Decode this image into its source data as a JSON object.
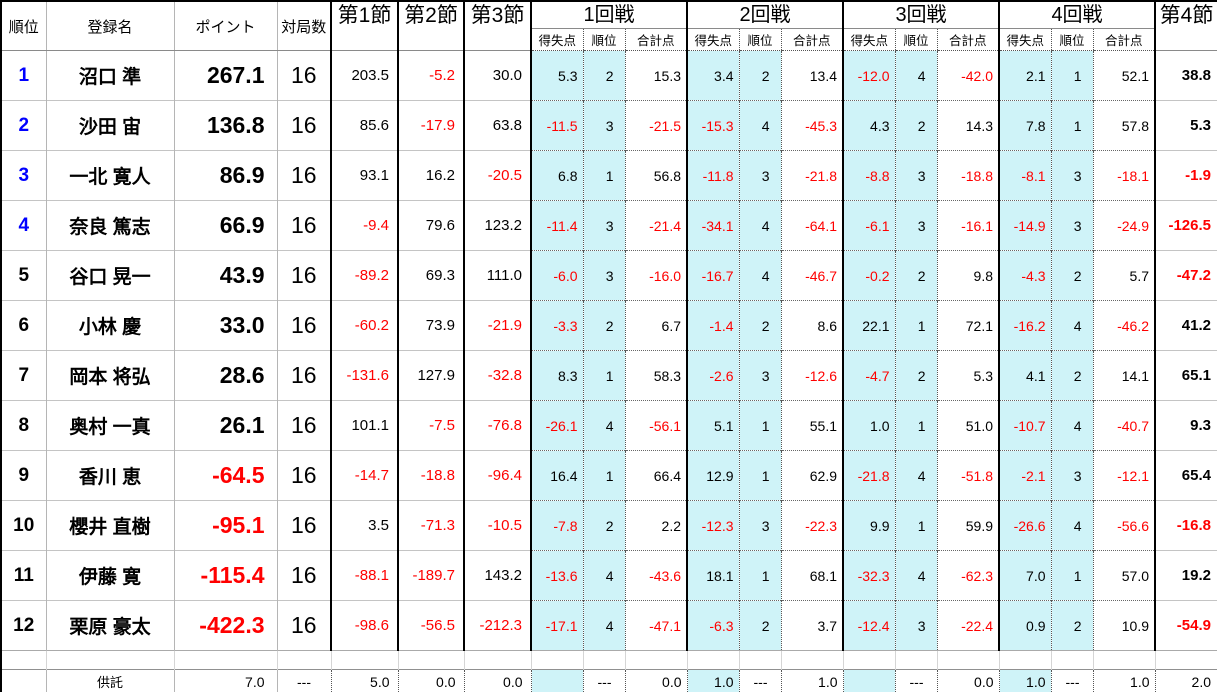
{
  "colors": {
    "highlight": "#CFF3F8",
    "negative": "#FF0000",
    "top_rank_blue": "#0000FF",
    "border": "#000000"
  },
  "table": {
    "headers": {
      "rank": "順位",
      "name": "登録名",
      "points": "ポイント",
      "games": "対局数",
      "sessions": [
        "第1節",
        "第2節",
        "第3節"
      ],
      "rounds": [
        "1回戦",
        "2回戦",
        "3回戦",
        "4回戦"
      ],
      "sub": {
        "gain": "得失点",
        "place": "順位",
        "total": "合計点"
      },
      "session4": "第4節"
    },
    "rows": [
      {
        "rank": "1",
        "name": "沼口 準",
        "pts": "267.1",
        "games": "16",
        "s1": "203.5",
        "s2": "-5.2",
        "s3": "30.0",
        "r1": [
          "5.3",
          "2",
          "15.3"
        ],
        "r2": [
          "3.4",
          "2",
          "13.4"
        ],
        "r3": [
          "-12.0",
          "4",
          "-42.0"
        ],
        "r4": [
          "2.1",
          "1",
          "52.1"
        ],
        "s4": "38.8"
      },
      {
        "rank": "2",
        "name": "沙田 宙",
        "pts": "136.8",
        "games": "16",
        "s1": "85.6",
        "s2": "-17.9",
        "s3": "63.8",
        "r1": [
          "-11.5",
          "3",
          "-21.5"
        ],
        "r2": [
          "-15.3",
          "4",
          "-45.3"
        ],
        "r3": [
          "4.3",
          "2",
          "14.3"
        ],
        "r4": [
          "7.8",
          "1",
          "57.8"
        ],
        "s4": "5.3"
      },
      {
        "rank": "3",
        "name": "一北 寛人",
        "pts": "86.9",
        "games": "16",
        "s1": "93.1",
        "s2": "16.2",
        "s3": "-20.5",
        "r1": [
          "6.8",
          "1",
          "56.8"
        ],
        "r2": [
          "-11.8",
          "3",
          "-21.8"
        ],
        "r3": [
          "-8.8",
          "3",
          "-18.8"
        ],
        "r4": [
          "-8.1",
          "3",
          "-18.1"
        ],
        "s4": "-1.9"
      },
      {
        "rank": "4",
        "name": "奈良 篤志",
        "pts": "66.9",
        "games": "16",
        "s1": "-9.4",
        "s2": "79.6",
        "s3": "123.2",
        "r1": [
          "-11.4",
          "3",
          "-21.4"
        ],
        "r2": [
          "-34.1",
          "4",
          "-64.1"
        ],
        "r3": [
          "-6.1",
          "3",
          "-16.1"
        ],
        "r4": [
          "-14.9",
          "3",
          "-24.9"
        ],
        "s4": "-126.5"
      },
      {
        "rank": "5",
        "name": "谷口 晃一",
        "pts": "43.9",
        "games": "16",
        "s1": "-89.2",
        "s2": "69.3",
        "s3": "111.0",
        "r1": [
          "-6.0",
          "3",
          "-16.0"
        ],
        "r2": [
          "-16.7",
          "4",
          "-46.7"
        ],
        "r3": [
          "-0.2",
          "2",
          "9.8"
        ],
        "r4": [
          "-4.3",
          "2",
          "5.7"
        ],
        "s4": "-47.2"
      },
      {
        "rank": "6",
        "name": "小林 慶",
        "pts": "33.0",
        "games": "16",
        "s1": "-60.2",
        "s2": "73.9",
        "s3": "-21.9",
        "r1": [
          "-3.3",
          "2",
          "6.7"
        ],
        "r2": [
          "-1.4",
          "2",
          "8.6"
        ],
        "r3": [
          "22.1",
          "1",
          "72.1"
        ],
        "r4": [
          "-16.2",
          "4",
          "-46.2"
        ],
        "s4": "41.2"
      },
      {
        "rank": "7",
        "name": "岡本 将弘",
        "pts": "28.6",
        "games": "16",
        "s1": "-131.6",
        "s2": "127.9",
        "s3": "-32.8",
        "r1": [
          "8.3",
          "1",
          "58.3"
        ],
        "r2": [
          "-2.6",
          "3",
          "-12.6"
        ],
        "r3": [
          "-4.7",
          "2",
          "5.3"
        ],
        "r4": [
          "4.1",
          "2",
          "14.1"
        ],
        "s4": "65.1"
      },
      {
        "rank": "8",
        "name": "奥村 一真",
        "pts": "26.1",
        "games": "16",
        "s1": "101.1",
        "s2": "-7.5",
        "s3": "-76.8",
        "r1": [
          "-26.1",
          "4",
          "-56.1"
        ],
        "r2": [
          "5.1",
          "1",
          "55.1"
        ],
        "r3": [
          "1.0",
          "1",
          "51.0"
        ],
        "r4": [
          "-10.7",
          "4",
          "-40.7"
        ],
        "s4": "9.3"
      },
      {
        "rank": "9",
        "name": "香川 恵",
        "pts": "-64.5",
        "games": "16",
        "s1": "-14.7",
        "s2": "-18.8",
        "s3": "-96.4",
        "r1": [
          "16.4",
          "1",
          "66.4"
        ],
        "r2": [
          "12.9",
          "1",
          "62.9"
        ],
        "r3": [
          "-21.8",
          "4",
          "-51.8"
        ],
        "r4": [
          "-2.1",
          "3",
          "-12.1"
        ],
        "s4": "65.4"
      },
      {
        "rank": "10",
        "name": "櫻井 直樹",
        "pts": "-95.1",
        "games": "16",
        "s1": "3.5",
        "s2": "-71.3",
        "s3": "-10.5",
        "r1": [
          "-7.8",
          "2",
          "2.2"
        ],
        "r2": [
          "-12.3",
          "3",
          "-22.3"
        ],
        "r3": [
          "9.9",
          "1",
          "59.9"
        ],
        "r4": [
          "-26.6",
          "4",
          "-56.6"
        ],
        "s4": "-16.8"
      },
      {
        "rank": "11",
        "name": "伊藤 寛",
        "pts": "-115.4",
        "games": "16",
        "s1": "-88.1",
        "s2": "-189.7",
        "s3": "143.2",
        "r1": [
          "-13.6",
          "4",
          "-43.6"
        ],
        "r2": [
          "18.1",
          "1",
          "68.1"
        ],
        "r3": [
          "-32.3",
          "4",
          "-62.3"
        ],
        "r4": [
          "7.0",
          "1",
          "57.0"
        ],
        "s4": "19.2"
      },
      {
        "rank": "12",
        "name": "栗原 豪太",
        "pts": "-422.3",
        "games": "16",
        "s1": "-98.6",
        "s2": "-56.5",
        "s3": "-212.3",
        "r1": [
          "-17.1",
          "4",
          "-47.1"
        ],
        "r2": [
          "-6.3",
          "2",
          "3.7"
        ],
        "r3": [
          "-12.4",
          "3",
          "-22.4"
        ],
        "r4": [
          "0.9",
          "2",
          "10.9"
        ],
        "s4": "-54.9"
      }
    ],
    "footer": {
      "rank": "",
      "name": "供託",
      "pts": "7.0",
      "games": "---",
      "s1": "5.0",
      "s2": "0.0",
      "s3": "0.0",
      "r1": [
        "",
        "---",
        "0.0"
      ],
      "r2": [
        "1.0",
        "---",
        "1.0"
      ],
      "r3": [
        "",
        "---",
        "0.0"
      ],
      "r4": [
        "1.0",
        "---",
        "1.0"
      ],
      "s4": "2.0"
    }
  }
}
